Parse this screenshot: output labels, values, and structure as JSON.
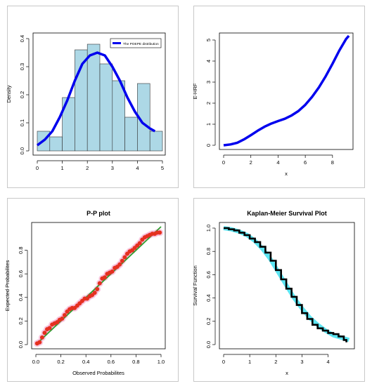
{
  "chart_data": [
    {
      "type": "histogram",
      "xlabel": "",
      "ylabel": "Density",
      "xlim": [
        0,
        5
      ],
      "ylim": [
        0,
        0.4
      ],
      "xticks": [
        "0",
        "1",
        "2",
        "3",
        "4",
        "5"
      ],
      "yticks": [
        "0.0",
        "0.1",
        "0.2",
        "0.3",
        "0.4"
      ],
      "bars": {
        "bin_edges": [
          0,
          0.5,
          1.0,
          1.5,
          2.0,
          2.5,
          3.0,
          3.5,
          4.0,
          4.5,
          5.0
        ],
        "values": [
          0.07,
          0.05,
          0.19,
          0.36,
          0.38,
          0.31,
          0.25,
          0.12,
          0.24,
          0.07
        ]
      },
      "series": [
        {
          "name": "The POEPE distribution",
          "x": [
            0,
            0.3,
            0.6,
            0.9,
            1.2,
            1.5,
            1.8,
            2.1,
            2.4,
            2.7,
            3.0,
            3.3,
            3.6,
            3.9,
            4.2,
            4.5,
            4.7
          ],
          "y": [
            0.02,
            0.04,
            0.07,
            0.12,
            0.18,
            0.25,
            0.31,
            0.34,
            0.35,
            0.34,
            0.3,
            0.25,
            0.19,
            0.14,
            0.1,
            0.08,
            0.07
          ]
        }
      ],
      "legend": "top-right",
      "colors": {
        "bars": "#add8e6",
        "curve": "#0000ee"
      }
    },
    {
      "type": "line",
      "xlabel": "x",
      "ylabel": "E-HRF",
      "xlim": [
        0,
        9.3
      ],
      "ylim": [
        0,
        5.2
      ],
      "xticks": [
        "0",
        "2",
        "4",
        "6",
        "8"
      ],
      "yticks": [
        "0",
        "1",
        "2",
        "3",
        "4",
        "5"
      ],
      "series": [
        {
          "x": [
            0,
            0.5,
            1,
            1.5,
            2,
            2.5,
            3,
            3.5,
            4,
            4.5,
            5,
            5.5,
            6,
            6.5,
            7,
            7.5,
            8,
            8.5,
            9,
            9.2
          ],
          "y": [
            0.0,
            0.04,
            0.12,
            0.28,
            0.48,
            0.69,
            0.88,
            1.03,
            1.15,
            1.26,
            1.42,
            1.63,
            1.92,
            2.3,
            2.75,
            3.28,
            3.87,
            4.5,
            5.05,
            5.2
          ]
        }
      ],
      "colors": {
        "line": "#0000ee"
      }
    },
    {
      "type": "scatter",
      "title": "P-P plot",
      "xlabel": "Observed Probabilites",
      "ylabel": "Expected Probabilites",
      "xlim": [
        0,
        1
      ],
      "ylim": [
        0,
        1
      ],
      "xticks": [
        "0.0",
        "0.2",
        "0.4",
        "0.6",
        "0.8",
        "1.0"
      ],
      "yticks": [
        "0.0",
        "0.2",
        "0.4",
        "0.6",
        "0.8"
      ],
      "series": [
        {
          "x": [
            0.01,
            0.03,
            0.05,
            0.07,
            0.09,
            0.11,
            0.13,
            0.15,
            0.17,
            0.19,
            0.21,
            0.23,
            0.25,
            0.27,
            0.29,
            0.31,
            0.33,
            0.35,
            0.37,
            0.39,
            0.41,
            0.43,
            0.45,
            0.47,
            0.49,
            0.51,
            0.53,
            0.55,
            0.57,
            0.59,
            0.61,
            0.63,
            0.65,
            0.67,
            0.69,
            0.71,
            0.73,
            0.75,
            0.77,
            0.79,
            0.81,
            0.83,
            0.85,
            0.87,
            0.89,
            0.91,
            0.93,
            0.95,
            0.97,
            0.99
          ],
          "y": [
            0.01,
            0.02,
            0.06,
            0.1,
            0.13,
            0.14,
            0.17,
            0.18,
            0.19,
            0.21,
            0.22,
            0.25,
            0.28,
            0.3,
            0.31,
            0.31,
            0.33,
            0.35,
            0.37,
            0.39,
            0.39,
            0.41,
            0.42,
            0.44,
            0.47,
            0.52,
            0.56,
            0.57,
            0.6,
            0.61,
            0.62,
            0.65,
            0.66,
            0.68,
            0.71,
            0.74,
            0.77,
            0.79,
            0.8,
            0.82,
            0.84,
            0.86,
            0.89,
            0.91,
            0.92,
            0.93,
            0.94,
            0.94,
            0.95,
            0.95
          ]
        }
      ],
      "reference_line": {
        "from": [
          0,
          0
        ],
        "to": [
          1,
          1
        ]
      },
      "colors": {
        "points": "#e53020",
        "halo": "#f4a0c8",
        "reference": "#2e9e2e"
      }
    },
    {
      "type": "line",
      "title": "Kaplan-Meier Survival Plot",
      "xlabel": "x",
      "ylabel": "Survival  Function",
      "xlim": [
        0,
        4.9
      ],
      "ylim": [
        0,
        1
      ],
      "xticks": [
        "0",
        "1",
        "2",
        "3",
        "4"
      ],
      "yticks": [
        "0.0",
        "0.2",
        "0.4",
        "0.6",
        "0.8",
        "1.0"
      ],
      "series": [
        {
          "x": [
            0,
            0.2,
            0.4,
            0.6,
            0.8,
            1.0,
            1.2,
            1.4,
            1.6,
            1.8,
            2.0,
            2.2,
            2.4,
            2.6,
            2.8,
            3.0,
            3.2,
            3.4,
            3.6,
            3.8,
            4.0,
            4.2,
            4.4,
            4.6,
            4.7
          ],
          "y": [
            1.0,
            0.99,
            0.98,
            0.96,
            0.94,
            0.91,
            0.88,
            0.84,
            0.79,
            0.72,
            0.64,
            0.56,
            0.48,
            0.41,
            0.34,
            0.27,
            0.22,
            0.17,
            0.14,
            0.12,
            0.1,
            0.09,
            0.07,
            0.04,
            0.02
          ]
        },
        {
          "x": [
            0,
            0.3,
            0.6,
            0.9,
            1.2,
            1.5,
            1.8,
            2.1,
            2.4,
            2.7,
            3.0,
            3.3,
            3.6,
            3.9,
            4.2,
            4.5,
            4.8
          ],
          "y": [
            1.0,
            0.99,
            0.97,
            0.94,
            0.89,
            0.82,
            0.73,
            0.62,
            0.51,
            0.4,
            0.31,
            0.23,
            0.17,
            0.12,
            0.08,
            0.06,
            0.04
          ]
        }
      ],
      "colors": {
        "km": "#000000",
        "fitted": "#40e0f0"
      }
    }
  ]
}
